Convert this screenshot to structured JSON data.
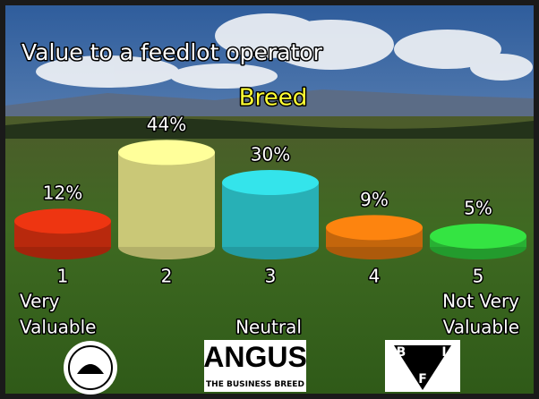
{
  "chart_data": {
    "type": "bar",
    "title": "Value to a feedlot operator",
    "subtitle": "Breed",
    "categories": [
      "1",
      "2",
      "3",
      "4",
      "5"
    ],
    "values": [
      12,
      44,
      30,
      9,
      5
    ],
    "value_labels": [
      "12%",
      "44%",
      "30%",
      "9%",
      "5%"
    ],
    "colors": [
      "#d8300f",
      "#eeeb8c",
      "#2fcfd6",
      "#e6780e",
      "#2fcf3c"
    ],
    "scale_labels": {
      "left": [
        "Very",
        "Valuable"
      ],
      "center": "Neutral",
      "right": [
        "Not Very",
        "Valuable"
      ]
    },
    "logos": {
      "angus": "ANGUS",
      "angus_tagline": "THE BUSINESS BREED",
      "bif": [
        "B",
        "I",
        "F"
      ]
    }
  }
}
